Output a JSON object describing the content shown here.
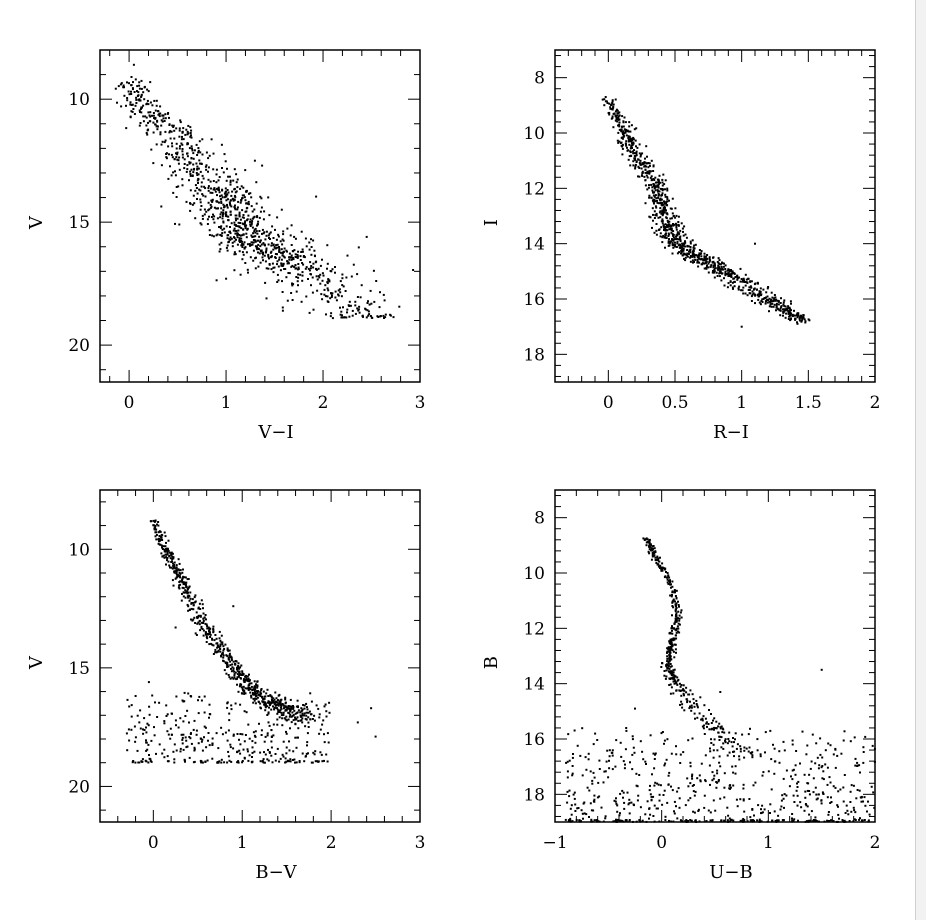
{
  "chart_data": [
    {
      "type": "scatter",
      "xlabel": "V−I",
      "ylabel": "V",
      "xlim": [
        -0.3,
        3.0
      ],
      "ylim": [
        21.5,
        8.0
      ],
      "y_inverted": true,
      "xticks": [
        0,
        1,
        2,
        3
      ],
      "xtick_labels": [
        "0",
        "1",
        "2",
        "3"
      ],
      "yticks": [
        10,
        15,
        20
      ],
      "ytick_labels": [
        "10",
        "15",
        "20"
      ],
      "grid": false,
      "point_color": "#000000",
      "sequence": {
        "x": [
          0.0,
          0.2,
          0.5,
          0.7,
          0.9,
          1.0,
          1.1,
          1.2,
          1.4,
          1.6,
          1.9,
          2.2,
          2.5
        ],
        "y": [
          9.3,
          10.6,
          11.5,
          12.8,
          13.7,
          14.2,
          14.9,
          15.4,
          16.0,
          16.5,
          17.2,
          18.3,
          18.8
        ],
        "spread": [
          0.25,
          0.35,
          0.35,
          0.5,
          0.55,
          0.55,
          0.55,
          0.55,
          0.6,
          0.6,
          0.7,
          0.8,
          0.5
        ],
        "n": 1100,
        "ymax": 18.9
      },
      "outliers": [
        {
          "x": 0.25,
          "y": 12.6
        },
        {
          "x": 1.0,
          "y": 17.3
        },
        {
          "x": 2.45,
          "y": 15.6
        },
        {
          "x": 2.7,
          "y": 18.8
        },
        {
          "x": 1.75,
          "y": 16.9
        },
        {
          "x": 0.05,
          "y": 8.6
        }
      ]
    },
    {
      "type": "scatter",
      "xlabel": "R−I",
      "ylabel": "I",
      "xlim": [
        -0.4,
        2.0
      ],
      "ylim": [
        19.0,
        7.0
      ],
      "y_inverted": true,
      "xticks": [
        0,
        0.5,
        1,
        1.5,
        2
      ],
      "xtick_labels": [
        "0",
        "0.5",
        "1",
        "1.5",
        "2"
      ],
      "yticks": [
        8,
        10,
        12,
        14,
        16,
        18
      ],
      "ytick_labels": [
        "8",
        "10",
        "12",
        "14",
        "16",
        "18"
      ],
      "grid": false,
      "point_color": "#000000",
      "sequence": {
        "x": [
          0.0,
          0.1,
          0.2,
          0.35,
          0.4,
          0.45,
          0.5,
          0.6,
          0.75,
          0.9,
          1.1,
          1.3,
          1.45
        ],
        "y": [
          8.8,
          9.8,
          10.8,
          11.8,
          12.6,
          13.3,
          13.9,
          14.3,
          14.7,
          15.1,
          15.7,
          16.3,
          16.8
        ],
        "spread": [
          0.08,
          0.1,
          0.12,
          0.12,
          0.12,
          0.14,
          0.15,
          0.15,
          0.15,
          0.15,
          0.15,
          0.15,
          0.1
        ],
        "n": 1000,
        "ymax": 17.1
      },
      "outliers": [
        {
          "x": 1.1,
          "y": 14.0
        },
        {
          "x": 1.0,
          "y": 17.0
        },
        {
          "x": -0.02,
          "y": 8.7
        }
      ]
    },
    {
      "type": "scatter",
      "xlabel": "B−V",
      "ylabel": "V",
      "xlim": [
        -0.6,
        3.0
      ],
      "ylim": [
        21.5,
        7.5
      ],
      "y_inverted": true,
      "xticks": [
        0,
        1,
        2,
        3
      ],
      "xtick_labels": [
        "0",
        "1",
        "2",
        "3"
      ],
      "yticks": [
        10,
        15,
        20
      ],
      "ytick_labels": [
        "10",
        "15",
        "20"
      ],
      "grid": false,
      "point_color": "#000000",
      "sequence": {
        "x": [
          0.0,
          0.15,
          0.35,
          0.55,
          0.75,
          0.95,
          1.1,
          1.3,
          1.5,
          1.7
        ],
        "y": [
          8.8,
          10.2,
          11.6,
          13.0,
          14.2,
          15.2,
          15.9,
          16.4,
          16.8,
          17.2
        ],
        "spread": [
          0.08,
          0.1,
          0.12,
          0.14,
          0.16,
          0.18,
          0.2,
          0.22,
          0.25,
          0.3
        ],
        "n": 700,
        "ymax": 19.0
      },
      "field": {
        "xmin": -0.3,
        "xmax": 2.0,
        "ymin": 16.0,
        "ymax": 19.0,
        "n": 380,
        "baseline_y": 19.0
      },
      "outliers": [
        {
          "x": 2.3,
          "y": 17.3
        },
        {
          "x": 2.45,
          "y": 16.7
        },
        {
          "x": 2.5,
          "y": 17.9
        },
        {
          "x": -0.05,
          "y": 15.6
        },
        {
          "x": 0.25,
          "y": 13.3
        },
        {
          "x": 0.9,
          "y": 12.4
        }
      ]
    },
    {
      "type": "scatter",
      "xlabel": "U−B",
      "ylabel": "B",
      "xlim": [
        -1.0,
        2.0
      ],
      "ylim": [
        19.0,
        7.0
      ],
      "y_inverted": true,
      "xticks": [
        -1,
        0,
        1,
        2
      ],
      "xtick_labels": [
        "−1",
        "0",
        "1",
        "2"
      ],
      "yticks": [
        8,
        10,
        12,
        14,
        16,
        18
      ],
      "ytick_labels": [
        "8",
        "10",
        "12",
        "14",
        "16",
        "18"
      ],
      "grid": false,
      "point_color": "#000000",
      "sequence": {
        "x": [
          -0.15,
          -0.05,
          0.1,
          0.15,
          0.1,
          0.05,
          0.1,
          0.25,
          0.5,
          0.8
        ],
        "y": [
          8.7,
          9.5,
          10.5,
          11.5,
          12.5,
          13.2,
          13.8,
          14.6,
          15.6,
          16.6
        ],
        "spread": [
          0.04,
          0.05,
          0.05,
          0.06,
          0.07,
          0.08,
          0.1,
          0.13,
          0.2,
          0.25
        ],
        "n": 450,
        "ymax": 19.0
      },
      "field": {
        "xmin": -0.9,
        "xmax": 2.0,
        "ymin": 15.5,
        "ymax": 19.0,
        "n": 650,
        "baseline_y": 19.0
      },
      "outliers": [
        {
          "x": 1.5,
          "y": 13.5
        },
        {
          "x": -0.25,
          "y": 14.9
        },
        {
          "x": 0.55,
          "y": 14.3
        }
      ]
    }
  ]
}
